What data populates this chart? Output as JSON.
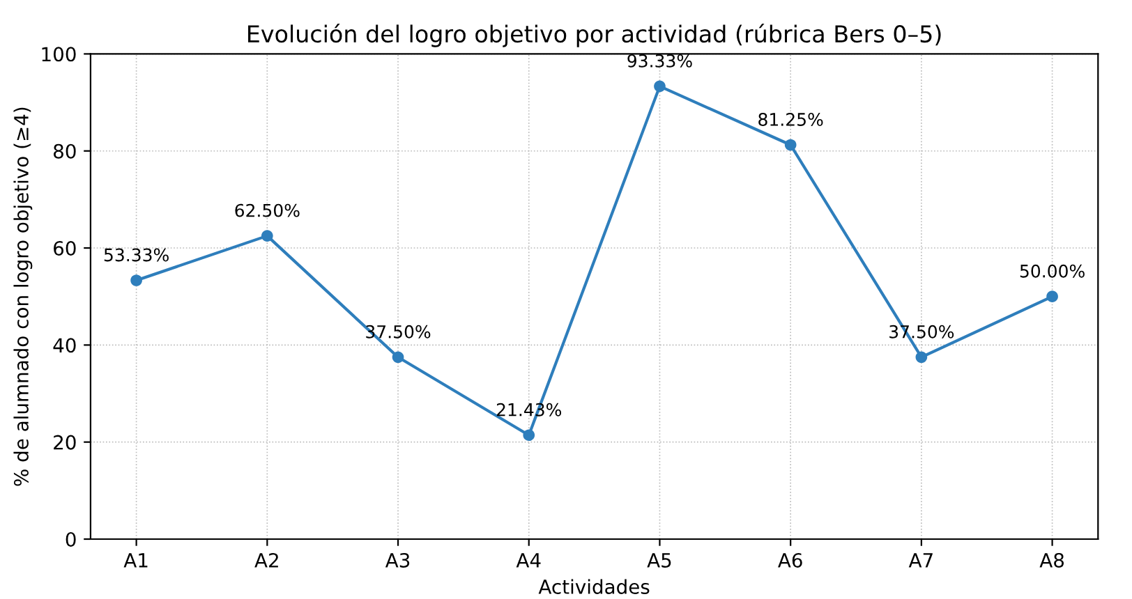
{
  "chart_data": {
    "type": "line",
    "title": "Evolución del logro objetivo por actividad (rúbrica Bers 0–5)",
    "xlabel": "Actividades",
    "ylabel": "% de alumnado con logro objetivo (≥4)",
    "categories": [
      "A1",
      "A2",
      "A3",
      "A4",
      "A5",
      "A6",
      "A7",
      "A8"
    ],
    "series": [
      {
        "color": "#2e7ebc",
        "values": [
          53.33,
          62.5,
          37.5,
          21.43,
          93.33,
          81.25,
          37.5,
          50.0
        ],
        "value_labels": [
          "53.33%",
          "62.50%",
          "37.50%",
          "21.43%",
          "93.33%",
          "81.25%",
          "37.50%",
          "50.00%"
        ]
      }
    ],
    "ylim": [
      0,
      100
    ],
    "yticks": [
      0,
      20,
      40,
      60,
      80,
      100
    ],
    "grid": true,
    "marker": "circle",
    "line_style": "solid"
  }
}
